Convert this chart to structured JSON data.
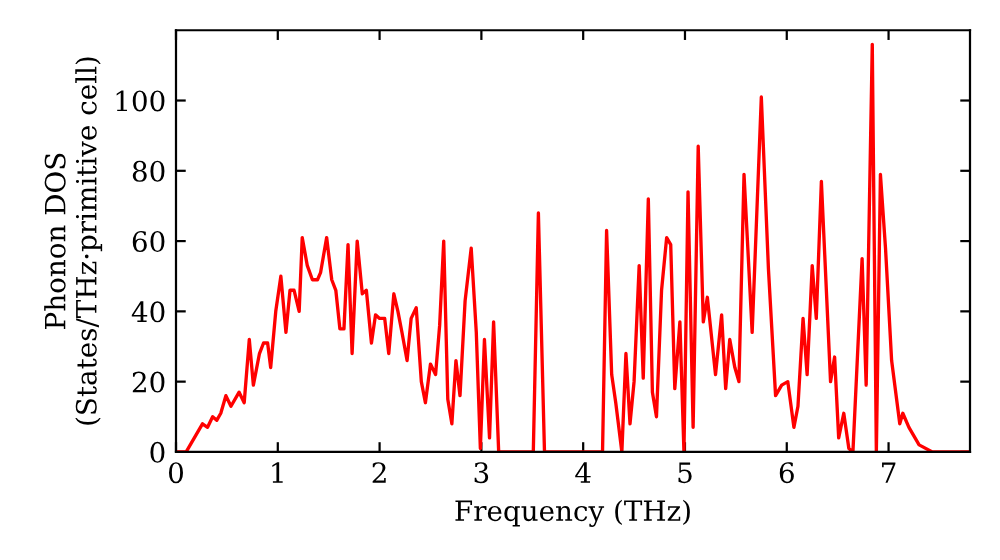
{
  "chart_data": {
    "type": "line",
    "xlabel": "Frequency (THz)",
    "ylabel": "Phonon DOS\n(States/THz·primitive cell)",
    "x": [
      0,
      0.1,
      0.2,
      0.26,
      0.31,
      0.36,
      0.4,
      0.44,
      0.49,
      0.54,
      0.62,
      0.67,
      0.72,
      0.76,
      0.82,
      0.86,
      0.9,
      0.93,
      0.98,
      1.03,
      1.08,
      1.12,
      1.16,
      1.21,
      1.24,
      1.29,
      1.34,
      1.39,
      1.42,
      1.48,
      1.53,
      1.57,
      1.61,
      1.65,
      1.69,
      1.73,
      1.78,
      1.83,
      1.87,
      1.92,
      1.96,
      2.0,
      2.05,
      2.09,
      2.14,
      2.18,
      2.22,
      2.27,
      2.31,
      2.36,
      2.41,
      2.45,
      2.5,
      2.55,
      2.59,
      2.63,
      2.67,
      2.71,
      2.75,
      2.79,
      2.84,
      2.9,
      2.95,
      2.99,
      3.03,
      3.08,
      3.12,
      3.17,
      3.51,
      3.56,
      3.62,
      4.19,
      4.23,
      4.28,
      4.32,
      4.38,
      4.42,
      4.46,
      4.5,
      4.55,
      4.59,
      4.64,
      4.68,
      4.72,
      4.77,
      4.82,
      4.86,
      4.9,
      4.95,
      4.99,
      5.03,
      5.08,
      5.13,
      5.18,
      5.22,
      5.3,
      5.36,
      5.4,
      5.44,
      5.49,
      5.53,
      5.58,
      5.66,
      5.75,
      5.82,
      5.89,
      5.95,
      6.01,
      6.07,
      6.11,
      6.16,
      6.2,
      6.25,
      6.29,
      6.34,
      6.43,
      6.47,
      6.51,
      6.56,
      6.61,
      6.65,
      6.74,
      6.78,
      6.84,
      6.88,
      6.92,
      6.97,
      7.03,
      7.11,
      7.14,
      7.2,
      7.3,
      7.43,
      7.79
    ],
    "series": [
      {
        "color": "#ff0000",
        "values": [
          0,
          0,
          5,
          8,
          7,
          10,
          9,
          11,
          16,
          13,
          17,
          14,
          32,
          19,
          28,
          31,
          31,
          24,
          40,
          50,
          34,
          46,
          46,
          40,
          61,
          53,
          49,
          49,
          51,
          61,
          49,
          46,
          35,
          35,
          59,
          28,
          60,
          45,
          46,
          31,
          39,
          38,
          38,
          28,
          45,
          40,
          34,
          26,
          38,
          41,
          20,
          14,
          25,
          22,
          36,
          60,
          15,
          8,
          26,
          16,
          43,
          58,
          34,
          1,
          32,
          4,
          37,
          0,
          0,
          68,
          0,
          0,
          63,
          22,
          14,
          0,
          28,
          8,
          20,
          53,
          21,
          72,
          17,
          10,
          46,
          61,
          59,
          18,
          37,
          0,
          74,
          7,
          87,
          37,
          44,
          22,
          39,
          18,
          32,
          24,
          20,
          79,
          34,
          101,
          52,
          16,
          19,
          20,
          7,
          13,
          38,
          22,
          53,
          38,
          77,
          20,
          27,
          4,
          11,
          1,
          0,
          55,
          19,
          116,
          0,
          79,
          58,
          26,
          8,
          11,
          7,
          2,
          0,
          0
        ]
      }
    ],
    "xlim": [
      0,
      7.8
    ],
    "ylim": [
      0,
      120
    ],
    "xticks": [
      0,
      1,
      2,
      3,
      4,
      5,
      6,
      7
    ],
    "yticks": [
      0,
      20,
      40,
      60,
      80,
      100
    ],
    "grid": false,
    "legend": false,
    "marker": "none",
    "line_style": "solid"
  }
}
